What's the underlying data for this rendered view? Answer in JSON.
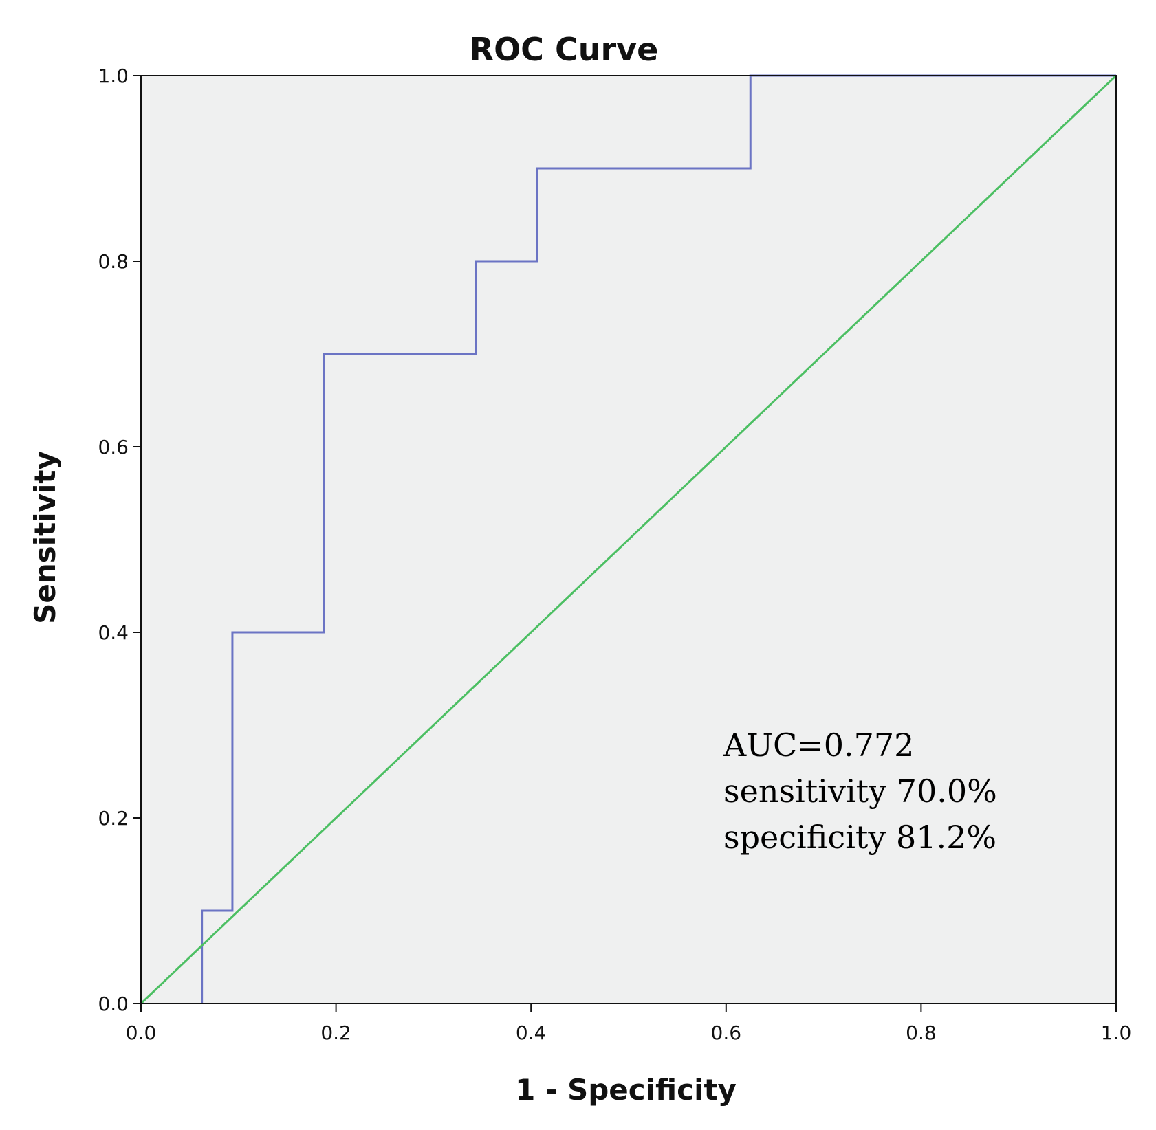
{
  "chart_data": {
    "type": "line",
    "title": "ROC Curve",
    "xlabel": "1 - Specificity",
    "ylabel": "Sensitivity",
    "xlim": [
      0.0,
      1.0
    ],
    "ylim": [
      0.0,
      1.0
    ],
    "xticks": [
      "0.0",
      "0.2",
      "0.4",
      "0.6",
      "0.8",
      "1.0"
    ],
    "yticks": [
      "0.0",
      "0.2",
      "0.4",
      "0.6",
      "0.8",
      "1.0"
    ],
    "grid": false,
    "series": [
      {
        "name": "ROC",
        "color": "#6b74c4",
        "step": true,
        "x": [
          0.0625,
          0.0625,
          0.09375,
          0.09375,
          0.1875,
          0.1875,
          0.34375,
          0.34375,
          0.40625,
          0.40625,
          0.625,
          0.625,
          1.0
        ],
        "y": [
          0.0,
          0.1,
          0.1,
          0.4,
          0.4,
          0.7,
          0.7,
          0.8,
          0.8,
          0.9,
          0.9,
          1.0,
          1.0
        ]
      },
      {
        "name": "Reference Line",
        "color": "#4cbf63",
        "x": [
          0.0,
          1.0
        ],
        "y": [
          0.0,
          1.0
        ]
      }
    ],
    "annotations": [
      "AUC=0.772",
      "sensitivity 70.0%",
      "specificity 81.2%"
    ],
    "plot_background": "#eff0f0"
  }
}
